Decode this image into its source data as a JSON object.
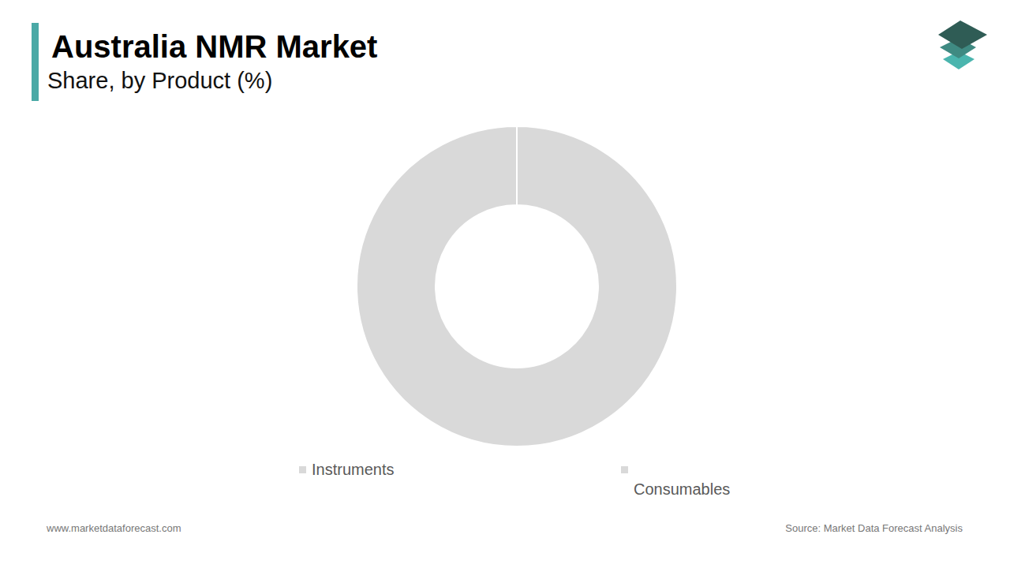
{
  "chart_data": {
    "type": "pie",
    "title": "Australia NMR Market",
    "subtitle": "Share, by Product (%)",
    "categories": [
      "Instruments",
      "Consumables"
    ],
    "values": [
      100,
      0
    ],
    "colors": [
      "#d9d9d9",
      "#d9d9d9"
    ],
    "legend": "bottom",
    "annotations": [
      "www.marketdataforecast.com",
      "Source: Market Data Forecast Analysis"
    ]
  }
}
